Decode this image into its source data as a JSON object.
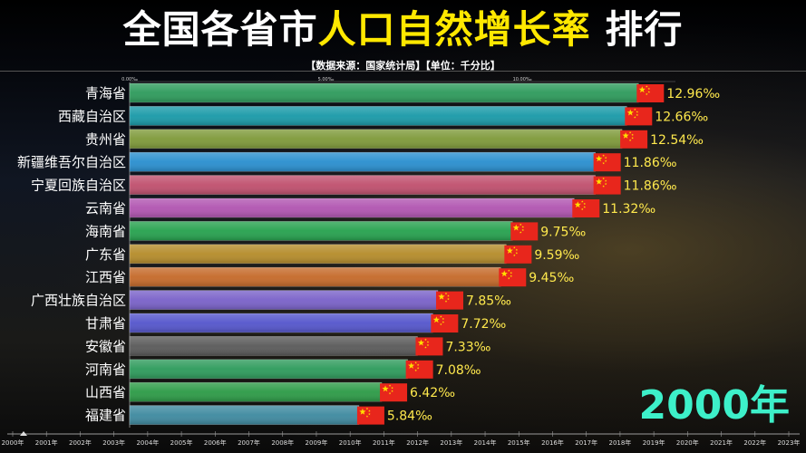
{
  "header": {
    "title_part1": "全国各省市",
    "title_part2": "人口自然增长率",
    "title_part3": "排行",
    "source": "【数据来源：国家统计局】【单位：千分比】"
  },
  "current_year": "2000年",
  "colors": {
    "title_white": "#ffffff",
    "title_yellow": "#ffe800",
    "value_text": "#ffe94d",
    "year_text": "#3df0c9"
  },
  "chart_data": {
    "type": "bar",
    "orientation": "horizontal",
    "unit": "‰",
    "categories": [
      "青海省",
      "西藏自治区",
      "贵州省",
      "新疆维吾尔自治区",
      "宁夏回族自治区",
      "云南省",
      "海南省",
      "广东省",
      "江西省",
      "广西壮族自治区",
      "甘肃省",
      "安徽省",
      "河南省",
      "山西省",
      "福建省"
    ],
    "values": [
      12.96,
      12.66,
      12.54,
      11.86,
      11.86,
      11.32,
      9.75,
      9.59,
      9.45,
      7.85,
      7.72,
      7.33,
      7.08,
      6.42,
      5.84
    ],
    "value_labels": [
      "12.96‰",
      "12.66‰",
      "12.54‰",
      "11.86‰",
      "11.86‰",
      "11.32‰",
      "9.75‰",
      "9.59‰",
      "9.45‰",
      "7.85‰",
      "7.72‰",
      "7.33‰",
      "7.08‰",
      "6.42‰",
      "5.84‰"
    ],
    "bar_colors": [
      "#2e9b5c",
      "#1a9aa8",
      "#7f9a3a",
      "#2a8fcf",
      "#c0506e",
      "#b155b1",
      "#27a24f",
      "#b58c2b",
      "#c56a2a",
      "#7a62c9",
      "#5556cc",
      "#5a5a5a",
      "#2e9b5c",
      "#2d9b47",
      "#3f8aa0"
    ],
    "xlim": [
      0,
      13.9
    ],
    "top_ticks": [
      "0.00‰",
      "5.00‰",
      "10.00‰"
    ],
    "top_tick_values": [
      0,
      5,
      10
    ],
    "timeline_years": [
      "2000年",
      "2001年",
      "2002年",
      "2003年",
      "2004年",
      "2005年",
      "2006年",
      "2007年",
      "2008年",
      "2009年",
      "2010年",
      "2011年",
      "2012年",
      "2013年",
      "2014年",
      "2015年",
      "2016年",
      "2017年",
      "2018年",
      "2019年",
      "2020年",
      "2021年",
      "2022年",
      "2023年"
    ]
  }
}
